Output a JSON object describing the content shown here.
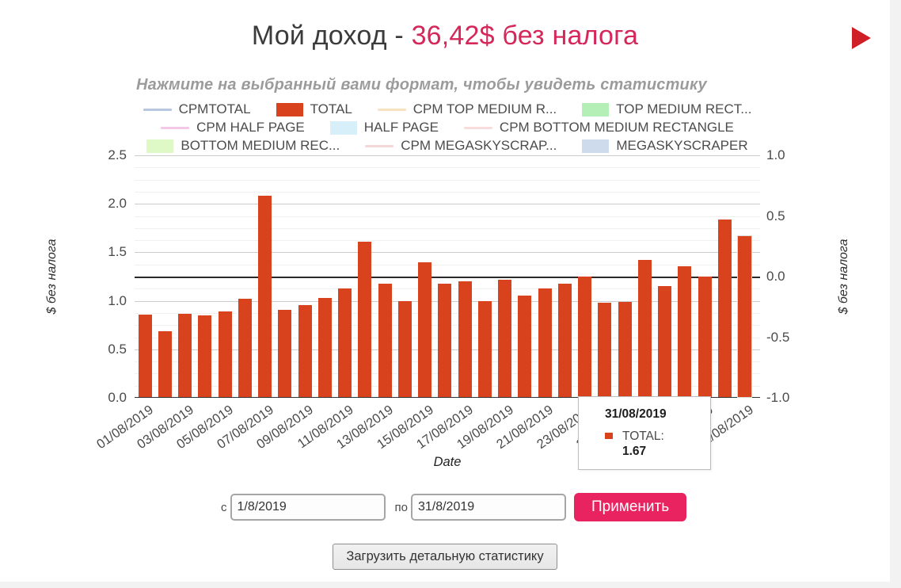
{
  "header": {
    "title_prefix": "Мой доход - ",
    "title_amount": "36,42$ без налога",
    "accent_color": "#d5285a"
  },
  "play_icon_color": "#d02027",
  "chart_data": {
    "type": "bar",
    "title": "Нажмите на выбранный вами формат, чтобы увидеть статистику",
    "xlabel": "Date",
    "ylabel_left": "$ без налога",
    "ylabel_right": "$ без налога",
    "left_axis": {
      "range": [
        0,
        2.5
      ],
      "tick_labels": [
        "0.0",
        "0.5",
        "1.0",
        "1.5",
        "2.0",
        "2.5"
      ]
    },
    "right_axis": {
      "range": [
        -1.0,
        1.0
      ],
      "tick_labels": [
        "-1.0",
        "-0.5",
        "0.0",
        "0.5",
        "1.0"
      ]
    },
    "grid": true,
    "legend_position": "top",
    "categories": [
      "01/08/2019",
      "02/08/2019",
      "03/08/2019",
      "04/08/2019",
      "05/08/2019",
      "06/08/2019",
      "07/08/2019",
      "08/08/2019",
      "09/08/2019",
      "10/08/2019",
      "11/08/2019",
      "12/08/2019",
      "13/08/2019",
      "14/08/2019",
      "15/08/2019",
      "16/08/2019",
      "17/08/2019",
      "18/08/2019",
      "19/08/2019",
      "20/08/2019",
      "21/08/2019",
      "22/08/2019",
      "23/08/2019",
      "24/08/2019",
      "25/08/2019",
      "26/08/2019",
      "27/08/2019",
      "28/08/2019",
      "29/08/2019",
      "30/08/2019",
      "31/08/2019"
    ],
    "x_tick_labels": [
      "01/08/2019",
      "03/08/2019",
      "05/08/2019",
      "07/08/2019",
      "09/08/2019",
      "11/08/2019",
      "13/08/2019",
      "15/08/2019",
      "17/08/2019",
      "19/08/2019",
      "21/08/2019",
      "23/08/2019",
      "25/08/2019",
      "27/08/2019",
      "29/08/2019",
      "31/08/2019"
    ],
    "series": [
      {
        "name": "TOTAL",
        "color": "#d8421c",
        "values": [
          0.86,
          0.69,
          0.87,
          0.85,
          0.89,
          1.02,
          2.08,
          0.91,
          0.96,
          1.03,
          1.13,
          1.61,
          1.18,
          1.0,
          1.4,
          1.18,
          1.2,
          1.0,
          1.22,
          1.05,
          1.13,
          1.18,
          1.25,
          0.98,
          0.99,
          1.42,
          1.15,
          1.36,
          1.25,
          1.84,
          1.67
        ]
      }
    ],
    "highlighted_bar_index": 30,
    "legend_rows": [
      [
        {
          "label": "CPMTOTAL",
          "marker": "line",
          "color": "#b7c7df"
        },
        {
          "label": "TOTAL",
          "marker": "box",
          "color": "#d8421c"
        },
        {
          "label": "CPM TOP MEDIUM R...",
          "marker": "line",
          "color": "#f7e3c3"
        },
        {
          "label": "TOP MEDIUM RECT...",
          "marker": "box",
          "color": "#b3efb6"
        }
      ],
      [
        {
          "label": "CPM HALF PAGE",
          "marker": "line",
          "color": "#f3c7e6"
        },
        {
          "label": "HALF PAGE",
          "marker": "box",
          "color": "#d6eff8"
        },
        {
          "label": "CPM BOTTOM MEDIUM RECTANGLE",
          "marker": "line",
          "color": "#f9dddd"
        }
      ],
      [
        {
          "label": "BOTTOM MEDIUM REC...",
          "marker": "box",
          "color": "#def9c5"
        },
        {
          "label": "CPM MEGASKYSCRAP...",
          "marker": "line",
          "color": "#f7d6d6"
        },
        {
          "label": "MEGASKYSCRAPER",
          "marker": "box",
          "color": "#cedbec"
        }
      ]
    ]
  },
  "tooltip": {
    "date": "31/08/2019",
    "series_label": "TOTAL:",
    "value": "1.67",
    "marker_color": "#d8421c"
  },
  "controls": {
    "from_label": "с",
    "from_value": "1/8/2019",
    "to_label": "по",
    "to_value": "31/8/2019",
    "apply_label": "Применить",
    "apply_color": "#e8235f"
  },
  "footer": {
    "load_button_label": "Загрузить детальную статистику"
  }
}
